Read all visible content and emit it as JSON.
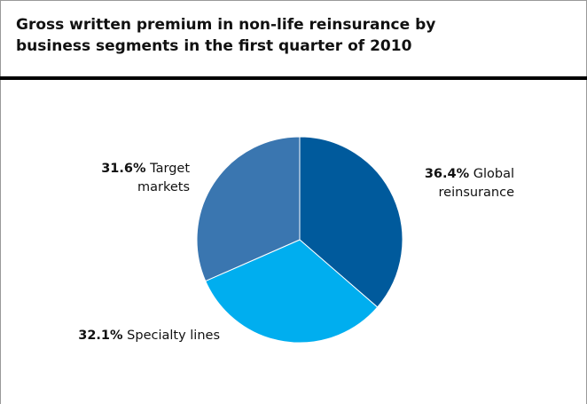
{
  "chart_data": {
    "type": "pie",
    "title": "Gross written premium in non-life reinsurance by business segments in the first quarter of 2010",
    "categories": [
      "Global reinsurance",
      "Specialty lines",
      "Target markets"
    ],
    "values": [
      36.4,
      32.1,
      31.6
    ],
    "value_labels": [
      "36.4%",
      "32.1%",
      "31.6%"
    ],
    "colors": [
      "#005a9c",
      "#00aeef",
      "#3a76b0"
    ]
  }
}
